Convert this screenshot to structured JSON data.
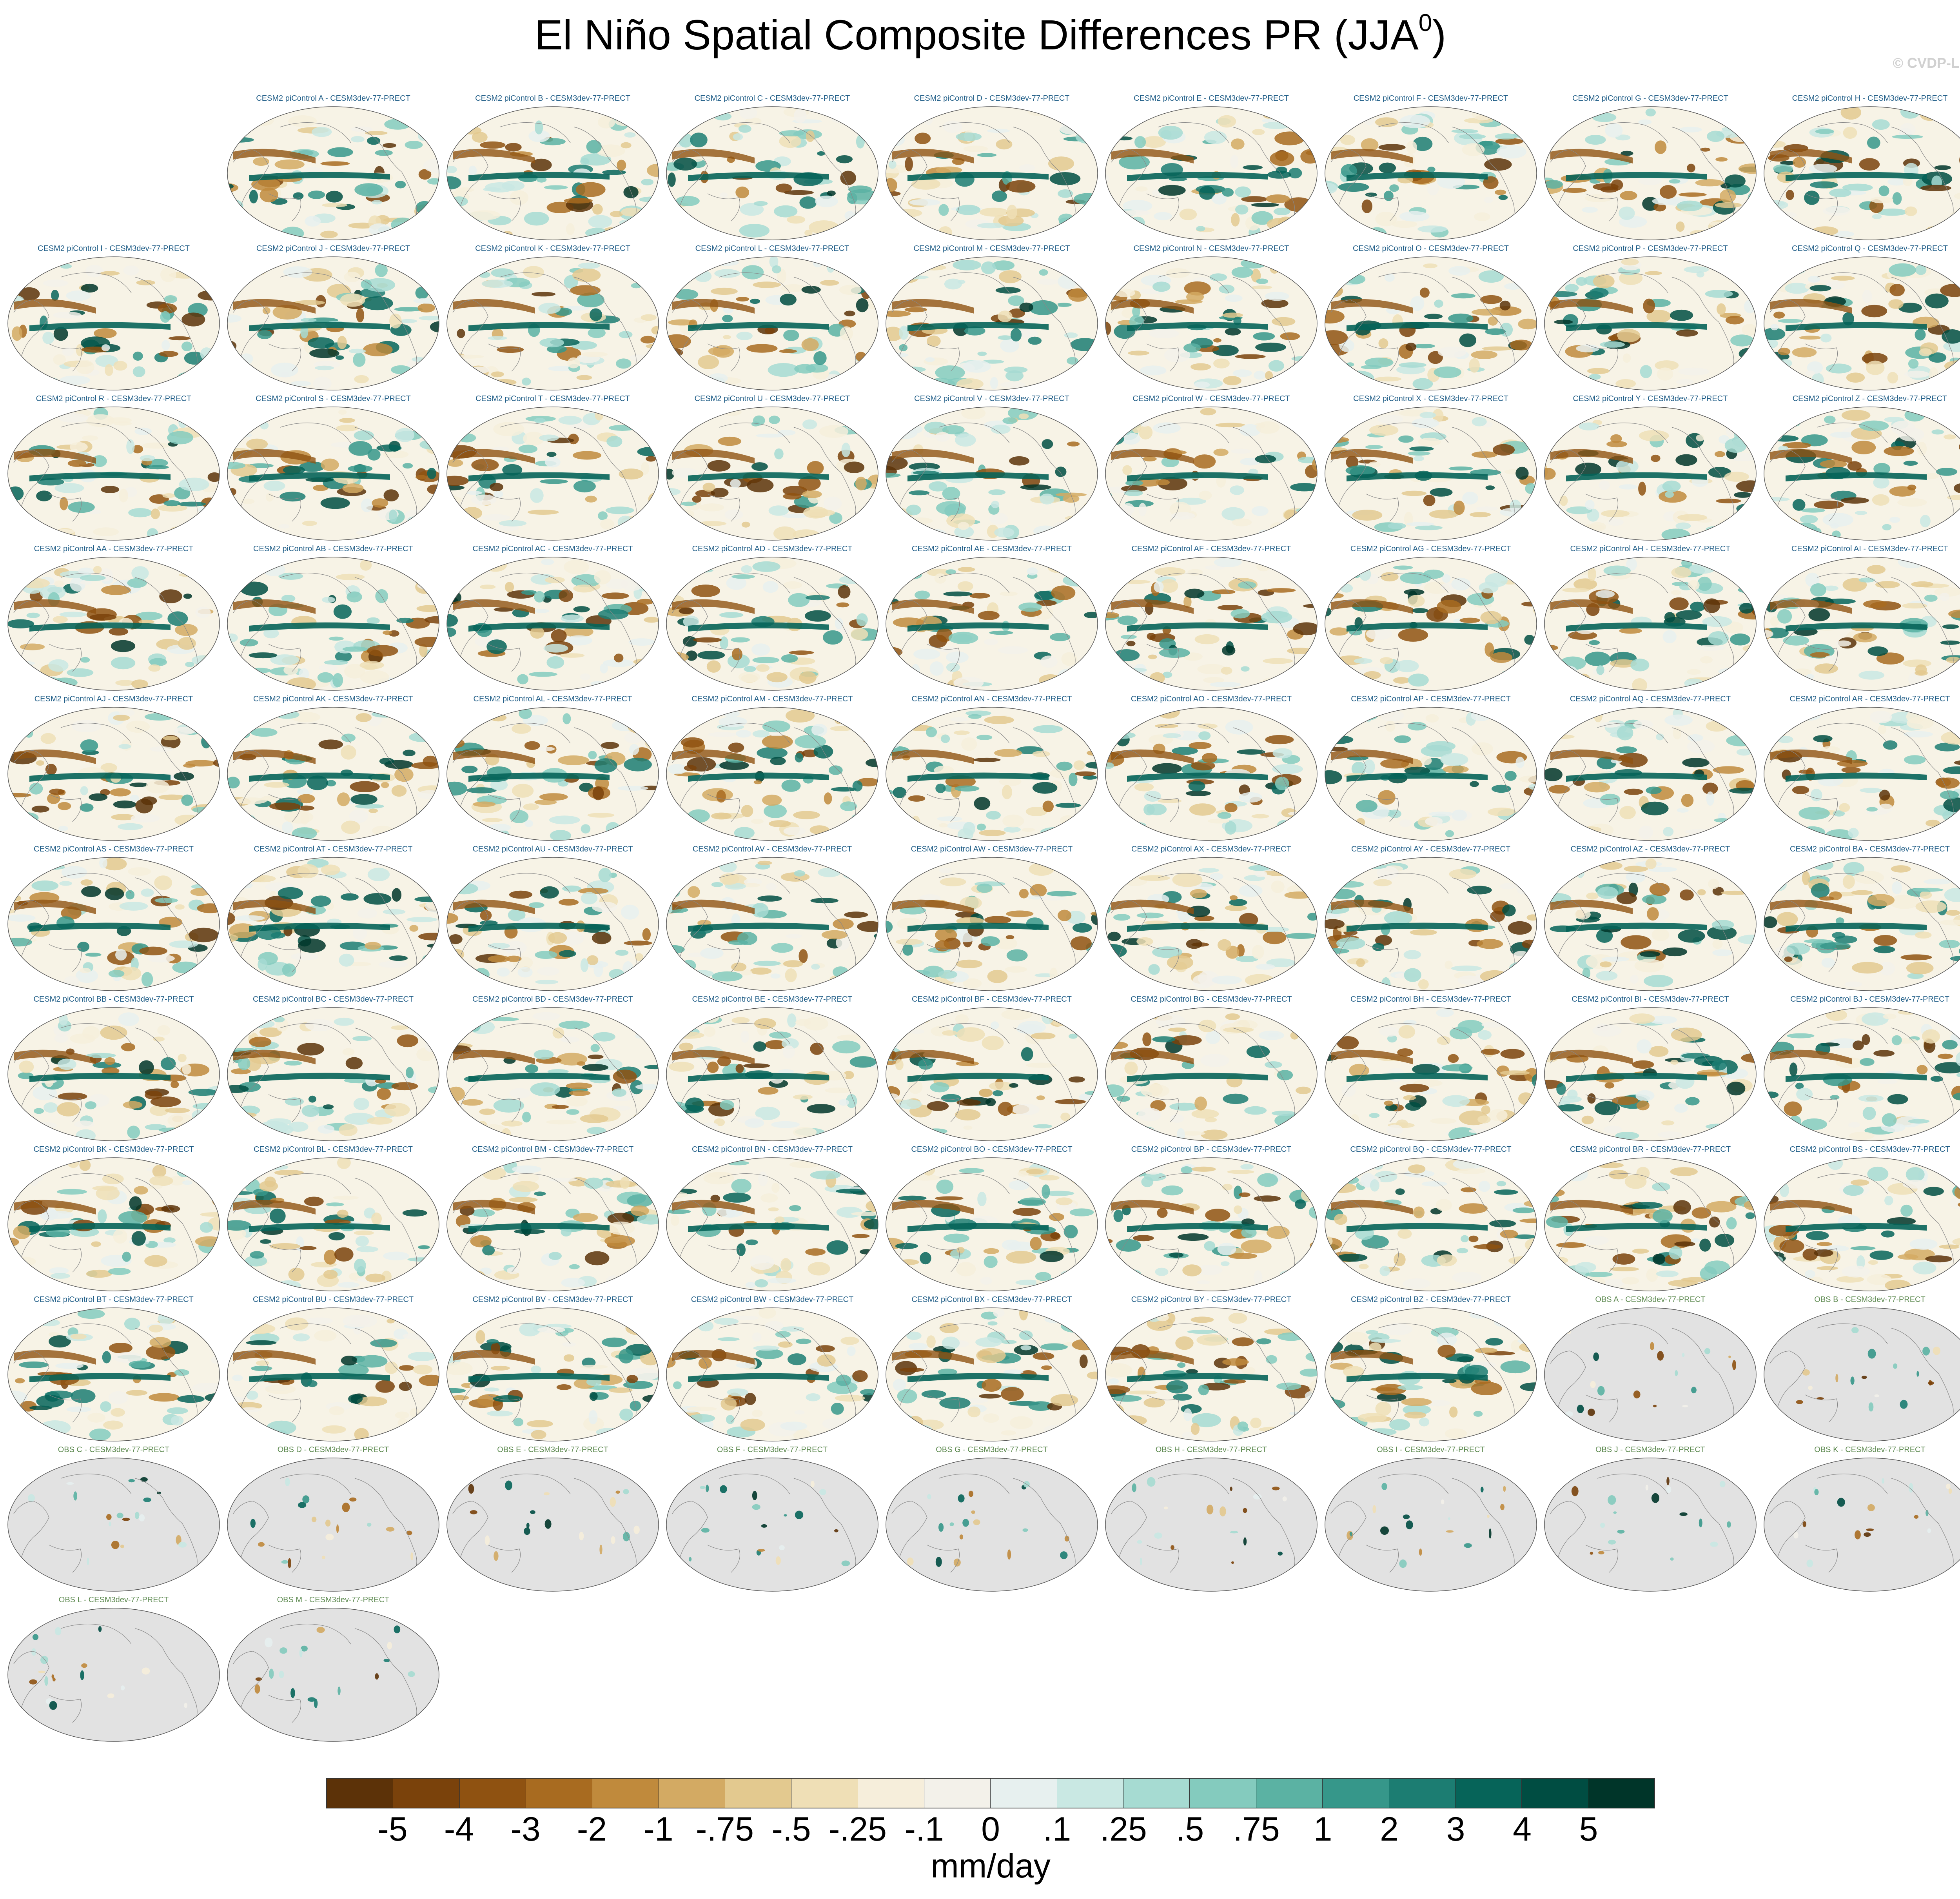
{
  "title": {
    "main": "El Niño Spatial Composite Differences PR (JJA",
    "superscript": "0",
    "suffix": ")"
  },
  "watermark": "© CVDP-LE",
  "panels": [
    {
      "title": "CESM2 piControl A - CESM3dev-77-PRECT",
      "kind": "model"
    },
    {
      "title": "CESM2 piControl B - CESM3dev-77-PRECT",
      "kind": "model"
    },
    {
      "title": "CESM2 piControl C - CESM3dev-77-PRECT",
      "kind": "model"
    },
    {
      "title": "CESM2 piControl D - CESM3dev-77-PRECT",
      "kind": "model"
    },
    {
      "title": "CESM2 piControl E - CESM3dev-77-PRECT",
      "kind": "model"
    },
    {
      "title": "CESM2 piControl F - CESM3dev-77-PRECT",
      "kind": "model"
    },
    {
      "title": "CESM2 piControl G - CESM3dev-77-PRECT",
      "kind": "model"
    },
    {
      "title": "CESM2 piControl H - CESM3dev-77-PRECT",
      "kind": "model"
    },
    {
      "title": "CESM2 piControl I - CESM3dev-77-PRECT",
      "kind": "model"
    },
    {
      "title": "CESM2 piControl J - CESM3dev-77-PRECT",
      "kind": "model"
    },
    {
      "title": "CESM2 piControl K - CESM3dev-77-PRECT",
      "kind": "model"
    },
    {
      "title": "CESM2 piControl L - CESM3dev-77-PRECT",
      "kind": "model"
    },
    {
      "title": "CESM2 piControl M - CESM3dev-77-PRECT",
      "kind": "model"
    },
    {
      "title": "CESM2 piControl N - CESM3dev-77-PRECT",
      "kind": "model"
    },
    {
      "title": "CESM2 piControl O - CESM3dev-77-PRECT",
      "kind": "model"
    },
    {
      "title": "CESM2 piControl P - CESM3dev-77-PRECT",
      "kind": "model"
    },
    {
      "title": "CESM2 piControl Q - CESM3dev-77-PRECT",
      "kind": "model"
    },
    {
      "title": "CESM2 piControl R - CESM3dev-77-PRECT",
      "kind": "model"
    },
    {
      "title": "CESM2 piControl S - CESM3dev-77-PRECT",
      "kind": "model"
    },
    {
      "title": "CESM2 piControl T - CESM3dev-77-PRECT",
      "kind": "model"
    },
    {
      "title": "CESM2 piControl U - CESM3dev-77-PRECT",
      "kind": "model"
    },
    {
      "title": "CESM2 piControl V - CESM3dev-77-PRECT",
      "kind": "model"
    },
    {
      "title": "CESM2 piControl W - CESM3dev-77-PRECT",
      "kind": "model"
    },
    {
      "title": "CESM2 piControl X - CESM3dev-77-PRECT",
      "kind": "model"
    },
    {
      "title": "CESM2 piControl Y - CESM3dev-77-PRECT",
      "kind": "model"
    },
    {
      "title": "CESM2 piControl Z - CESM3dev-77-PRECT",
      "kind": "model"
    },
    {
      "title": "CESM2 piControl AA - CESM3dev-77-PRECT",
      "kind": "model"
    },
    {
      "title": "CESM2 piControl AB - CESM3dev-77-PRECT",
      "kind": "model"
    },
    {
      "title": "CESM2 piControl AC - CESM3dev-77-PRECT",
      "kind": "model"
    },
    {
      "title": "CESM2 piControl AD - CESM3dev-77-PRECT",
      "kind": "model"
    },
    {
      "title": "CESM2 piControl AE - CESM3dev-77-PRECT",
      "kind": "model"
    },
    {
      "title": "CESM2 piControl AF - CESM3dev-77-PRECT",
      "kind": "model"
    },
    {
      "title": "CESM2 piControl AG - CESM3dev-77-PRECT",
      "kind": "model"
    },
    {
      "title": "CESM2 piControl AH - CESM3dev-77-PRECT",
      "kind": "model"
    },
    {
      "title": "CESM2 piControl AI - CESM3dev-77-PRECT",
      "kind": "model"
    },
    {
      "title": "CESM2 piControl AJ - CESM3dev-77-PRECT",
      "kind": "model"
    },
    {
      "title": "CESM2 piControl AK - CESM3dev-77-PRECT",
      "kind": "model"
    },
    {
      "title": "CESM2 piControl AL - CESM3dev-77-PRECT",
      "kind": "model"
    },
    {
      "title": "CESM2 piControl AM - CESM3dev-77-PRECT",
      "kind": "model"
    },
    {
      "title": "CESM2 piControl AN - CESM3dev-77-PRECT",
      "kind": "model"
    },
    {
      "title": "CESM2 piControl AO - CESM3dev-77-PRECT",
      "kind": "model"
    },
    {
      "title": "CESM2 piControl AP - CESM3dev-77-PRECT",
      "kind": "model"
    },
    {
      "title": "CESM2 piControl AQ - CESM3dev-77-PRECT",
      "kind": "model"
    },
    {
      "title": "CESM2 piControl AR - CESM3dev-77-PRECT",
      "kind": "model"
    },
    {
      "title": "CESM2 piControl AS - CESM3dev-77-PRECT",
      "kind": "model"
    },
    {
      "title": "CESM2 piControl AT - CESM3dev-77-PRECT",
      "kind": "model"
    },
    {
      "title": "CESM2 piControl AU - CESM3dev-77-PRECT",
      "kind": "model"
    },
    {
      "title": "CESM2 piControl AV - CESM3dev-77-PRECT",
      "kind": "model"
    },
    {
      "title": "CESM2 piControl AW - CESM3dev-77-PRECT",
      "kind": "model"
    },
    {
      "title": "CESM2 piControl AX - CESM3dev-77-PRECT",
      "kind": "model"
    },
    {
      "title": "CESM2 piControl AY - CESM3dev-77-PRECT",
      "kind": "model"
    },
    {
      "title": "CESM2 piControl AZ - CESM3dev-77-PRECT",
      "kind": "model"
    },
    {
      "title": "CESM2 piControl BA - CESM3dev-77-PRECT",
      "kind": "model"
    },
    {
      "title": "CESM2 piControl BB - CESM3dev-77-PRECT",
      "kind": "model"
    },
    {
      "title": "CESM2 piControl BC - CESM3dev-77-PRECT",
      "kind": "model"
    },
    {
      "title": "CESM2 piControl BD - CESM3dev-77-PRECT",
      "kind": "model"
    },
    {
      "title": "CESM2 piControl BE - CESM3dev-77-PRECT",
      "kind": "model"
    },
    {
      "title": "CESM2 piControl BF - CESM3dev-77-PRECT",
      "kind": "model"
    },
    {
      "title": "CESM2 piControl BG - CESM3dev-77-PRECT",
      "kind": "model"
    },
    {
      "title": "CESM2 piControl BH - CESM3dev-77-PRECT",
      "kind": "model"
    },
    {
      "title": "CESM2 piControl BI - CESM3dev-77-PRECT",
      "kind": "model"
    },
    {
      "title": "CESM2 piControl BJ - CESM3dev-77-PRECT",
      "kind": "model"
    },
    {
      "title": "CESM2 piControl BK - CESM3dev-77-PRECT",
      "kind": "model"
    },
    {
      "title": "CESM2 piControl BL - CESM3dev-77-PRECT",
      "kind": "model"
    },
    {
      "title": "CESM2 piControl BM - CESM3dev-77-PRECT",
      "kind": "model"
    },
    {
      "title": "CESM2 piControl BN - CESM3dev-77-PRECT",
      "kind": "model"
    },
    {
      "title": "CESM2 piControl BO - CESM3dev-77-PRECT",
      "kind": "model"
    },
    {
      "title": "CESM2 piControl BP - CESM3dev-77-PRECT",
      "kind": "model"
    },
    {
      "title": "CESM2 piControl BQ - CESM3dev-77-PRECT",
      "kind": "model"
    },
    {
      "title": "CESM2 piControl BR - CESM3dev-77-PRECT",
      "kind": "model"
    },
    {
      "title": "CESM2 piControl BS - CESM3dev-77-PRECT",
      "kind": "model"
    },
    {
      "title": "CESM2 piControl BT - CESM3dev-77-PRECT",
      "kind": "model"
    },
    {
      "title": "CESM2 piControl BU - CESM3dev-77-PRECT",
      "kind": "model"
    },
    {
      "title": "CESM2 piControl BV - CESM3dev-77-PRECT",
      "kind": "model"
    },
    {
      "title": "CESM2 piControl BW - CESM3dev-77-PRECT",
      "kind": "model"
    },
    {
      "title": "CESM2 piControl BX - CESM3dev-77-PRECT",
      "kind": "model"
    },
    {
      "title": "CESM2 piControl BY - CESM3dev-77-PRECT",
      "kind": "model"
    },
    {
      "title": "CESM2 piControl BZ - CESM3dev-77-PRECT",
      "kind": "model"
    },
    {
      "title": "OBS A - CESM3dev-77-PRECT",
      "kind": "obs"
    },
    {
      "title": "OBS B - CESM3dev-77-PRECT",
      "kind": "obs"
    },
    {
      "title": "OBS C - CESM3dev-77-PRECT",
      "kind": "obs"
    },
    {
      "title": "OBS D - CESM3dev-77-PRECT",
      "kind": "obs"
    },
    {
      "title": "OBS E - CESM3dev-77-PRECT",
      "kind": "obs"
    },
    {
      "title": "OBS F - CESM3dev-77-PRECT",
      "kind": "obs"
    },
    {
      "title": "OBS G - CESM3dev-77-PRECT",
      "kind": "obs"
    },
    {
      "title": "OBS H - CESM3dev-77-PRECT",
      "kind": "obs"
    },
    {
      "title": "OBS I - CESM3dev-77-PRECT",
      "kind": "obs"
    },
    {
      "title": "OBS J - CESM3dev-77-PRECT",
      "kind": "obs"
    },
    {
      "title": "OBS K - CESM3dev-77-PRECT",
      "kind": "obs"
    },
    {
      "title": "OBS L - CESM3dev-77-PRECT",
      "kind": "obs"
    },
    {
      "title": "OBS M - CESM3dev-77-PRECT",
      "kind": "obs"
    }
  ],
  "colors": {
    "model_title": "#1f5d87",
    "obs_title": "#5f8b52",
    "land_mask": "#e2e2e2",
    "coastline": "#888888",
    "colorbar": [
      "#5c3208",
      "#7a420b",
      "#8f5211",
      "#a86b20",
      "#c08a3c",
      "#d3aa63",
      "#e3c98f",
      "#efdfb6",
      "#f6eedb",
      "#f3f1ea",
      "#e7f0ef",
      "#c9e8e3",
      "#a6dbd2",
      "#84cbbe",
      "#5bb2a3",
      "#36978a",
      "#1c7d72",
      "#066459",
      "#004d42",
      "#003529"
    ]
  },
  "colorbar": {
    "ticks": [
      "-5",
      "-4",
      "-3",
      "-2",
      "-1",
      "-.75",
      "-.5",
      "-.25",
      "-.1",
      "0",
      ".1",
      ".25",
      ".5",
      ".75",
      "1",
      "2",
      "3",
      "4",
      "5"
    ],
    "units": "mm/day"
  }
}
